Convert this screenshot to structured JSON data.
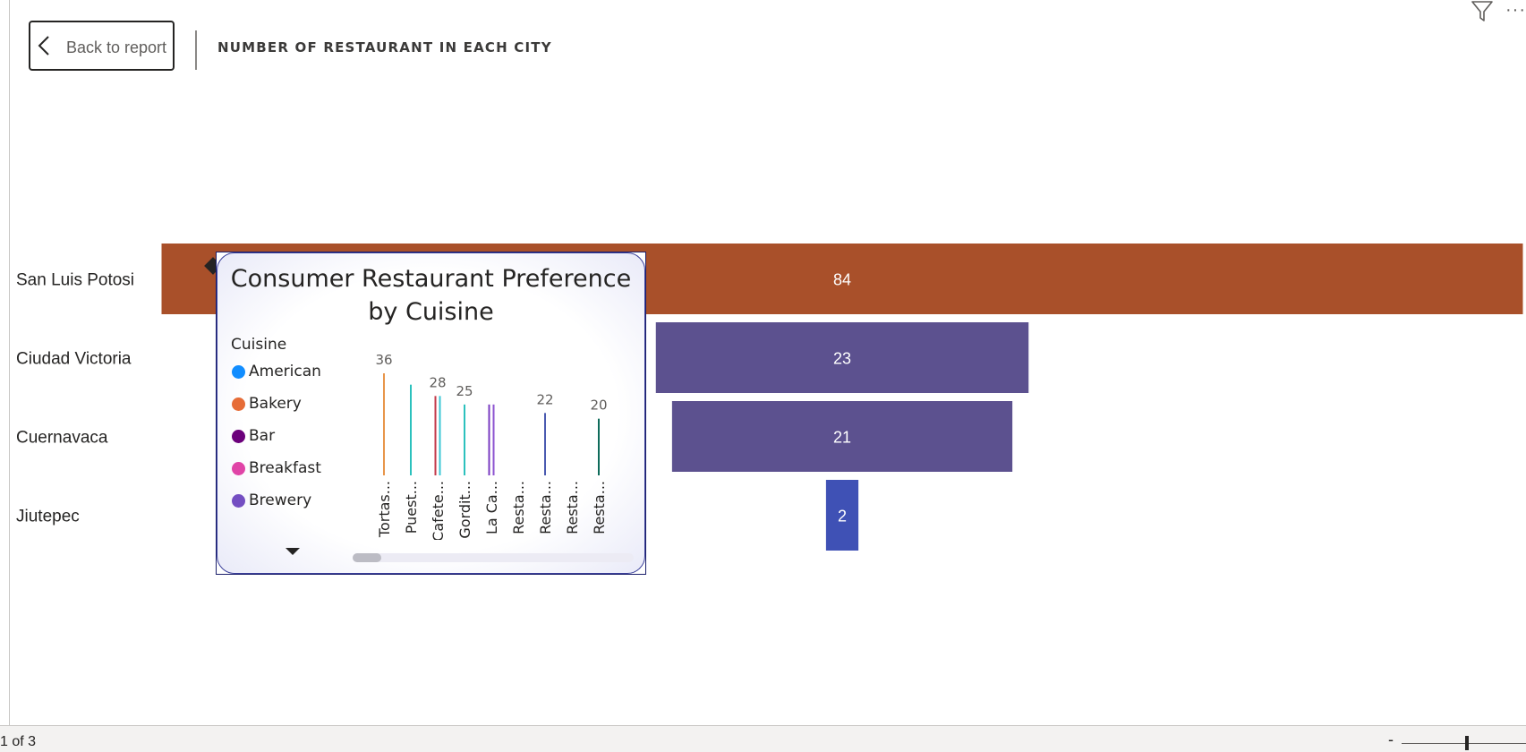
{
  "header": {
    "back_label": "Back to report",
    "visual_title": "NUMBER OF RESTAURANT IN EACH CITY"
  },
  "chart_data": [
    {
      "type": "funnel",
      "title": "",
      "categories": [
        "San Luis Potosi",
        "Ciudad Victoria",
        "Cuernavaca",
        "Jiutepec"
      ],
      "values": [
        84,
        23,
        21,
        2
      ],
      "colors": [
        "#a9502a",
        "#5c518f",
        "#5c518f",
        "#3f51b5"
      ]
    },
    {
      "type": "bar",
      "title": "Consumer Restaurant Preference by Cuisine",
      "legend_title": "Cuisine",
      "categories": [
        "Tortas...",
        "Puest...",
        "Cafete...",
        "Gordit...",
        "La Ca...",
        "Resta...",
        "Resta...",
        "Resta...",
        "Resta..."
      ],
      "data_labels": [
        "36",
        "",
        "28",
        "25",
        "",
        "",
        "22",
        "",
        "20"
      ],
      "bars": [
        [
          {
            "value": 36,
            "color": "#e8954a"
          }
        ],
        [
          {
            "value": 32,
            "color": "#2cc1bd"
          }
        ],
        [
          {
            "value": 28,
            "color": "#c23a4a"
          },
          {
            "value": 28,
            "color": "#3cc7d6"
          }
        ],
        [
          {
            "value": 25,
            "color": "#2cc1bd"
          }
        ],
        [
          {
            "value": 25,
            "color": "#7a3cc2"
          },
          {
            "value": 25,
            "color": "#8c53d0"
          }
        ],
        [],
        [
          {
            "value": 22,
            "color": "#4a5ab0"
          }
        ],
        [],
        [
          {
            "value": 20,
            "color": "#0e6b5a"
          }
        ]
      ],
      "ylim": [
        0,
        36
      ]
    }
  ],
  "legend": {
    "items": [
      {
        "label": "American",
        "color": "#118dff"
      },
      {
        "label": "Bakery",
        "color": "#e66c37"
      },
      {
        "label": "Bar",
        "color": "#6b007b"
      },
      {
        "label": "Breakfast",
        "color": "#e044a7"
      },
      {
        "label": "Brewery",
        "color": "#744ec2"
      }
    ]
  },
  "status": {
    "page_indicator": "1 of 3",
    "zoom_minus": "-"
  }
}
